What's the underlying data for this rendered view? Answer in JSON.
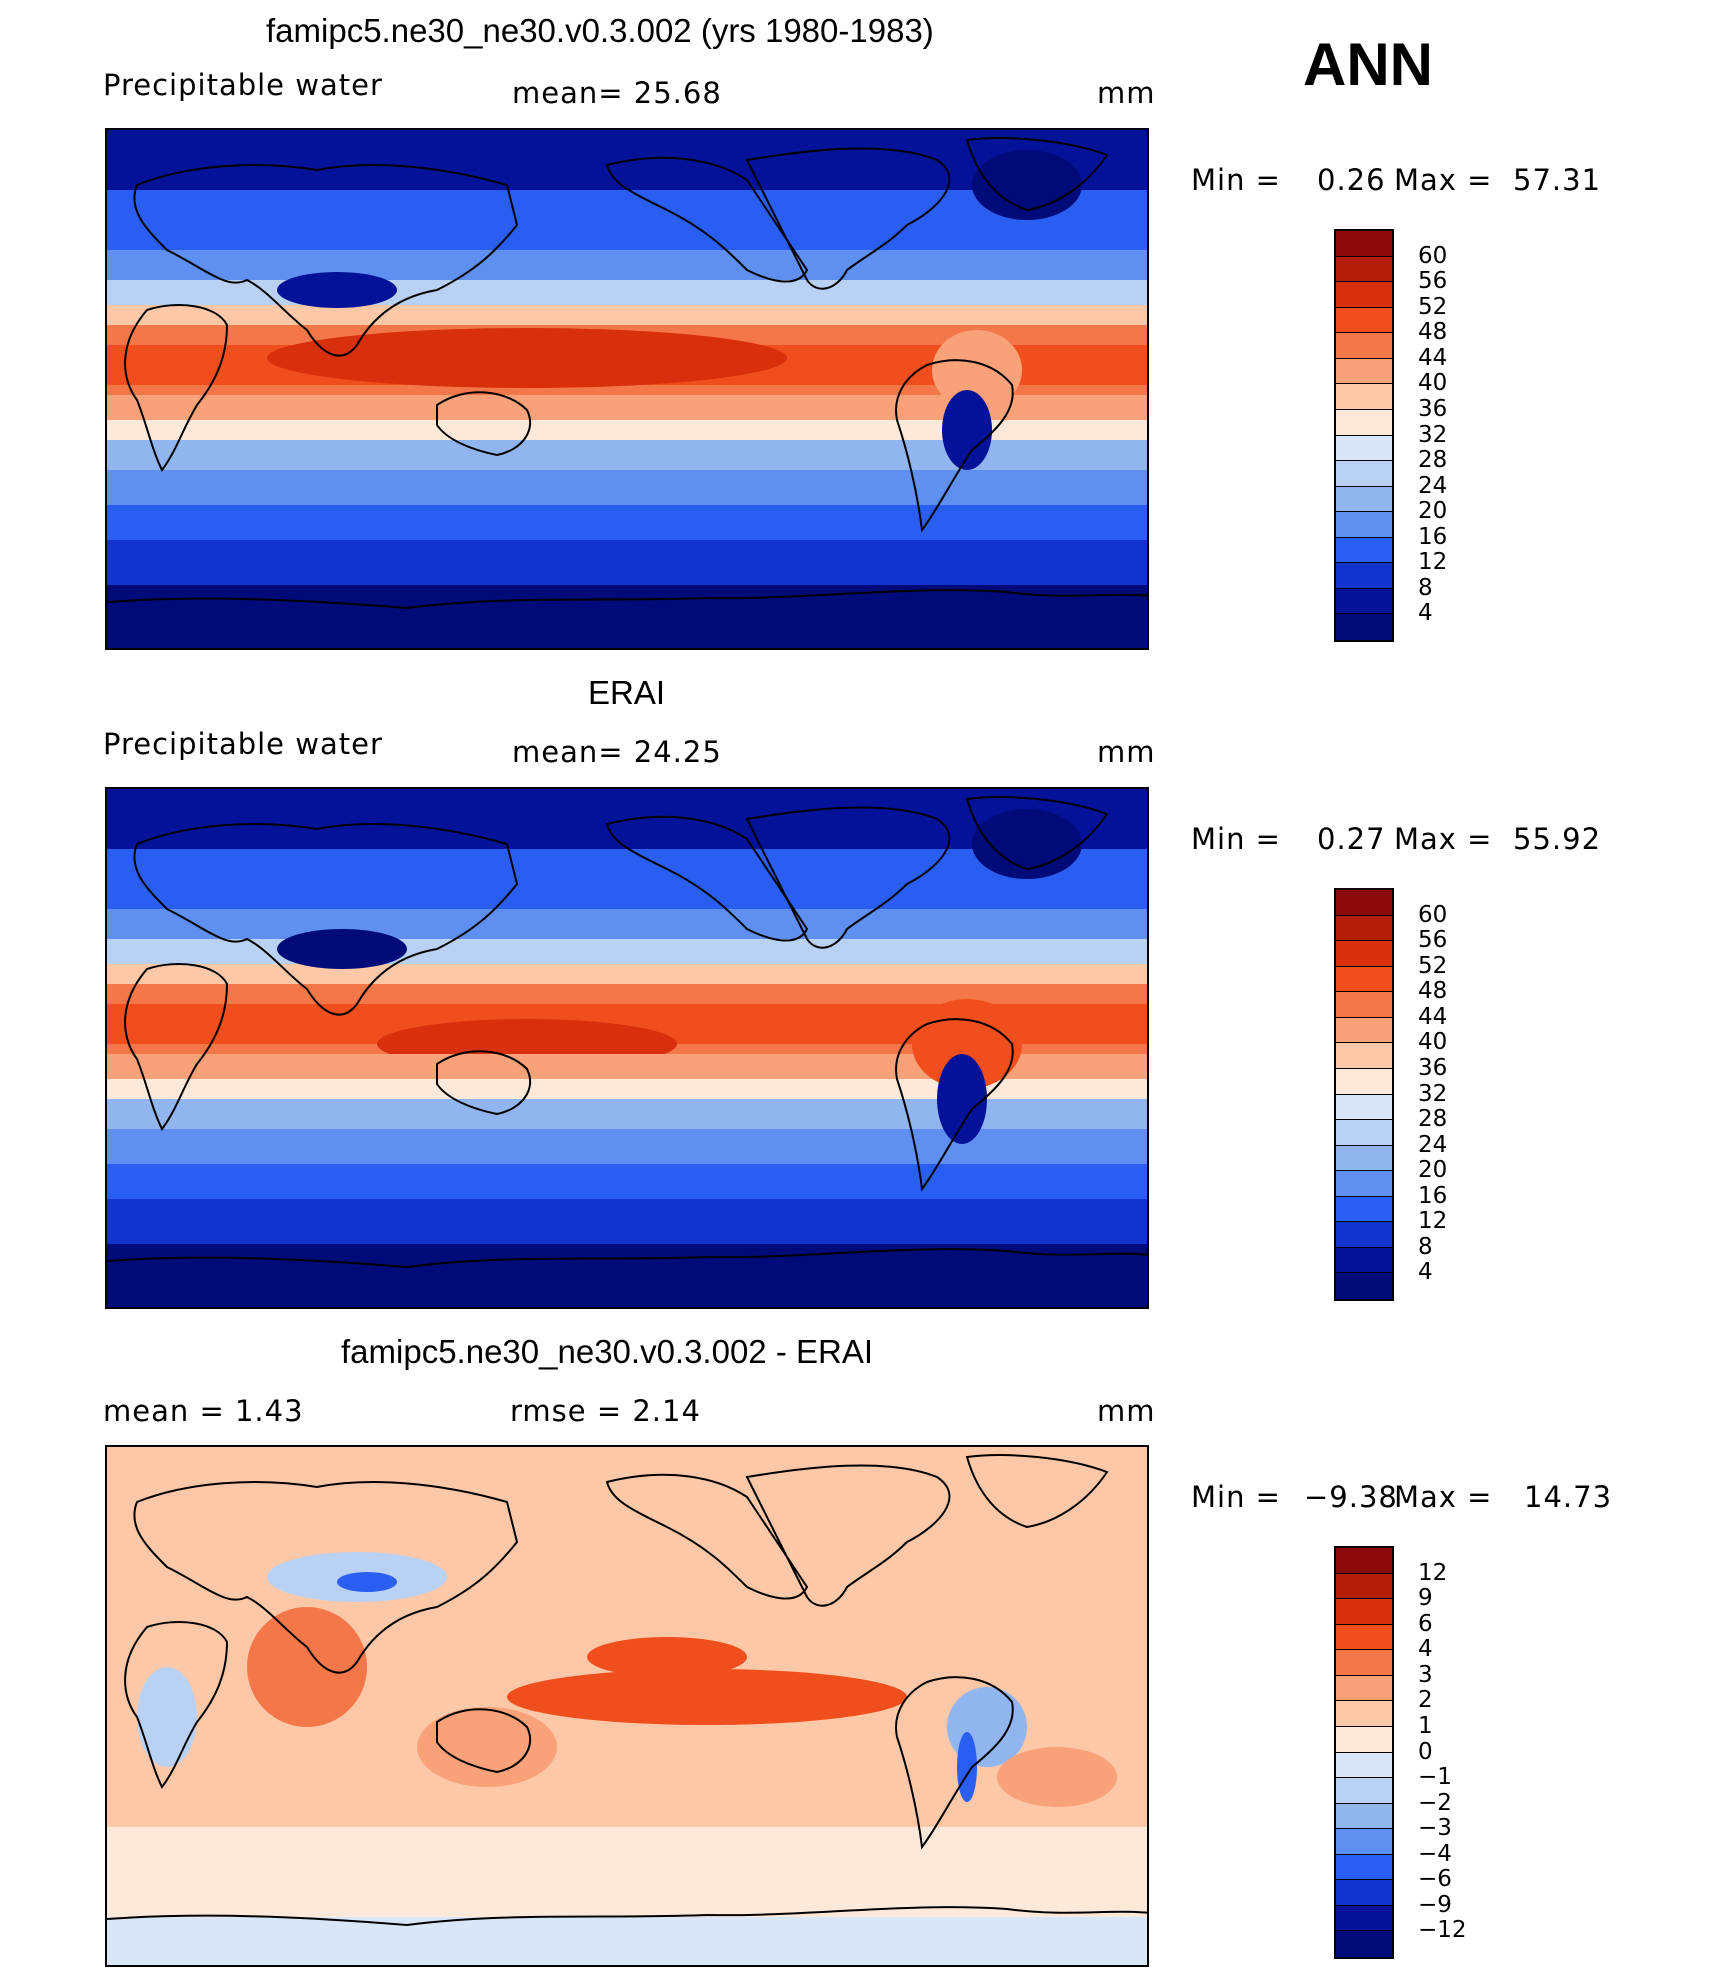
{
  "season": "ANN",
  "panels": [
    {
      "id": "model",
      "title": "famipc5.ne30_ne30.v0.3.002 (yrs 1980-1983)",
      "left_label": "Precipitable  water",
      "center_label": "mean=   25.68",
      "units": "mm",
      "min_label": "Min  =",
      "min_value": "0.26",
      "max_label": "Max  =",
      "max_value": "57.31",
      "colorbar": {
        "labels": [
          "60",
          "56",
          "52",
          "48",
          "44",
          "40",
          "36",
          "32",
          "28",
          "24",
          "20",
          "16",
          "12",
          "8",
          "4"
        ],
        "colors": [
          "#8b0a0a",
          "#b31d08",
          "#d8300c",
          "#f04f1d",
          "#f4774a",
          "#f9a178",
          "#fcc8a8",
          "#fde9d9",
          "#d8e6f7",
          "#b9d1f2",
          "#91b5ef",
          "#5f8ff0",
          "#2a5ef0",
          "#1234cc",
          "#04129a",
          "#000a78"
        ]
      }
    },
    {
      "id": "obs",
      "title": "ERAI",
      "left_label": "Precipitable  water",
      "center_label": "mean=   24.25",
      "units": "mm",
      "min_label": "Min  =",
      "min_value": "0.27",
      "max_label": "Max  =",
      "max_value": "55.92",
      "colorbar": {
        "labels": [
          "60",
          "56",
          "52",
          "48",
          "44",
          "40",
          "36",
          "32",
          "28",
          "24",
          "20",
          "16",
          "12",
          "8",
          "4"
        ],
        "colors": [
          "#8b0a0a",
          "#b31d08",
          "#d8300c",
          "#f04f1d",
          "#f4774a",
          "#f9a178",
          "#fcc8a8",
          "#fde9d9",
          "#d8e6f7",
          "#b9d1f2",
          "#91b5ef",
          "#5f8ff0",
          "#2a5ef0",
          "#1234cc",
          "#04129a",
          "#000a78"
        ]
      }
    },
    {
      "id": "diff",
      "title": "famipc5.ne30_ne30.v0.3.002 - ERAI",
      "left_label": "mean  =     1.43",
      "center_label": "rmse  =     2.14",
      "units": "mm",
      "min_label": "Min  =",
      "min_value": "−9.38",
      "max_label": "Max  =",
      "max_value": "14.73",
      "colorbar": {
        "labels": [
          "12",
          "9",
          "6",
          "4",
          "3",
          "2",
          "1",
          "0",
          "−1",
          "−2",
          "−3",
          "−4",
          "−6",
          "−9",
          "−12"
        ],
        "colors": [
          "#8b0a0a",
          "#b31d08",
          "#d8300c",
          "#f04f1d",
          "#f4774a",
          "#f9a178",
          "#fcc8a8",
          "#fde9d9",
          "#d8e6f7",
          "#b9d1f2",
          "#91b5ef",
          "#5f8ff0",
          "#2a5ef0",
          "#1234cc",
          "#04129a",
          "#000a78"
        ]
      }
    }
  ]
}
